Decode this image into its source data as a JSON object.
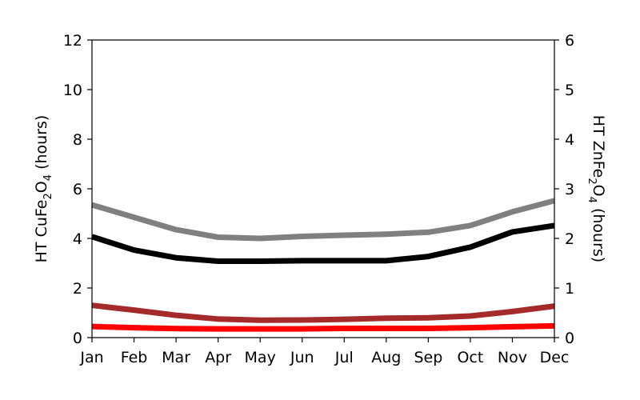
{
  "chart_data": {
    "type": "line",
    "categories": [
      "Jan",
      "Feb",
      "Mar",
      "Apr",
      "May",
      "Jun",
      "Jul",
      "Aug",
      "Sep",
      "Oct",
      "Nov",
      "Dec"
    ],
    "y_left": {
      "label_prefix": "HT CuFe",
      "label_sub1": "2",
      "label_mid": "O",
      "label_sub2": "4",
      "label_suffix": " (hours)",
      "ylim": [
        0,
        12
      ],
      "ticks": [
        0,
        2,
        4,
        6,
        8,
        10,
        12
      ]
    },
    "y_right": {
      "label_prefix": "HT ZnFe",
      "label_sub1": "2",
      "label_mid": "O",
      "label_sub2": "4",
      "label_suffix": " (hours)",
      "ylim": [
        0,
        6
      ],
      "ticks": [
        0,
        1,
        2,
        3,
        4,
        5,
        6
      ]
    },
    "grid": false,
    "series": [
      {
        "axis": "left",
        "color": "#808080",
        "values": [
          5.35,
          4.85,
          4.35,
          4.05,
          4.0,
          4.08,
          4.13,
          4.17,
          4.25,
          4.52,
          5.07,
          5.52
        ]
      },
      {
        "axis": "left",
        "color": "#000000",
        "values": [
          4.07,
          3.53,
          3.22,
          3.08,
          3.08,
          3.1,
          3.1,
          3.1,
          3.27,
          3.65,
          4.26,
          4.52
        ]
      },
      {
        "axis": "left",
        "color": "#a52a2a",
        "values": [
          1.3,
          1.11,
          0.9,
          0.75,
          0.7,
          0.71,
          0.74,
          0.78,
          0.8,
          0.87,
          1.05,
          1.27
        ]
      },
      {
        "axis": "left",
        "color": "#ff0000",
        "values": [
          0.45,
          0.4,
          0.36,
          0.35,
          0.35,
          0.35,
          0.37,
          0.37,
          0.37,
          0.4,
          0.44,
          0.47
        ]
      }
    ]
  }
}
